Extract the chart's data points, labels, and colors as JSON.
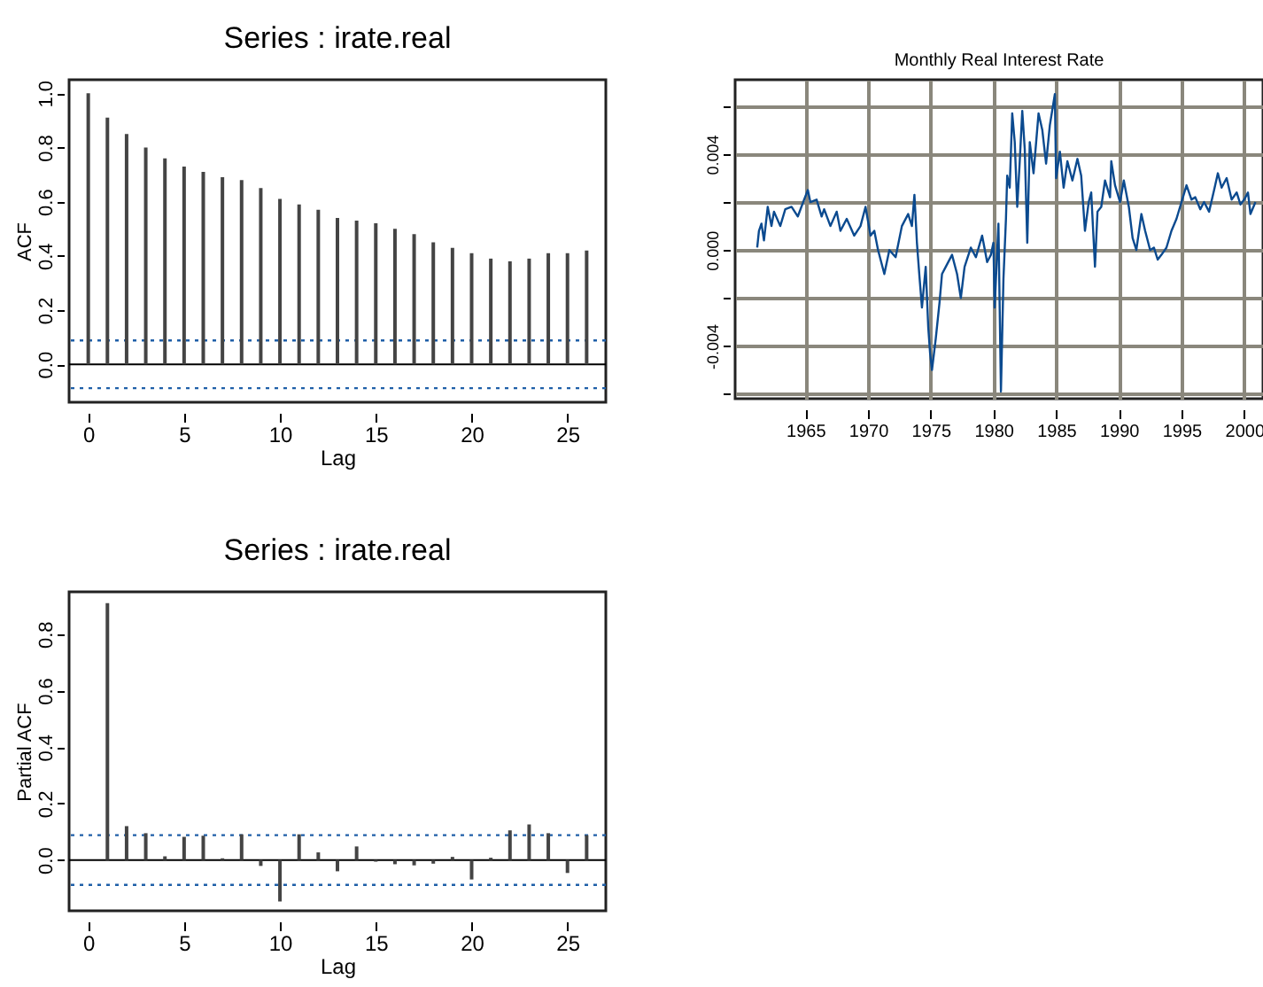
{
  "chart_data": [
    {
      "type": "bar",
      "title": "Series : irate.real",
      "xlabel": "Lag",
      "ylabel": "ACF",
      "x": [
        0,
        1,
        2,
        3,
        4,
        5,
        6,
        7,
        8,
        9,
        10,
        11,
        12,
        13,
        14,
        15,
        16,
        17,
        18,
        19,
        20,
        21,
        22,
        23,
        24,
        25,
        26
      ],
      "series": [
        {
          "color": "#444444",
          "values": [
            1.0,
            0.91,
            0.85,
            0.8,
            0.76,
            0.73,
            0.71,
            0.69,
            0.68,
            0.65,
            0.61,
            0.59,
            0.57,
            0.54,
            0.53,
            0.52,
            0.5,
            0.48,
            0.45,
            0.43,
            0.41,
            0.39,
            0.38,
            0.39,
            0.41,
            0.41,
            0.42
          ]
        }
      ],
      "xlim": [
        -1,
        27
      ],
      "xticks": [
        0,
        5,
        10,
        15,
        20,
        25
      ],
      "ylim": [
        -0.14,
        1.05
      ],
      "yticks": [
        {
          "value": 0,
          "label": "0.0"
        },
        {
          "value": 0.2,
          "label": "0.2"
        },
        {
          "value": 0.4,
          "label": "0.4"
        },
        {
          "value": 0.6,
          "label": "0.6"
        },
        {
          "value": 0.8,
          "label": "0.8"
        },
        {
          "value": 1,
          "label": "1.0"
        }
      ],
      "ref_lines": [
        {
          "axis": "y",
          "value": 0,
          "color": "#000000",
          "line_style": "solid"
        },
        {
          "axis": "y",
          "value": 0.088,
          "color": "#1f5fa8",
          "line_style": "dotted"
        },
        {
          "axis": "y",
          "value": -0.088,
          "color": "#1f5fa8",
          "line_style": "dotted"
        }
      ]
    },
    {
      "type": "line",
      "title": "Monthly Real Interest Rate",
      "series": [
        {
          "color": "#0b4a8f",
          "x": [
            1961.16,
            1961.3,
            1961.5,
            1961.7,
            1962.0,
            1962.3,
            1962.5,
            1963.0,
            1963.4,
            1963.9,
            1964.4,
            1964.9,
            1965.2,
            1965.4,
            1965.9,
            1966.3,
            1966.5,
            1967.0,
            1967.5,
            1967.8,
            1968.3,
            1968.9,
            1969.4,
            1969.8,
            1970.2,
            1970.5,
            1970.8,
            1971.3,
            1971.7,
            1972.2,
            1972.7,
            1973.2,
            1973.5,
            1973.7,
            1973.9,
            1974.1,
            1974.3,
            1974.6,
            1974.8,
            1974.95,
            1975.1,
            1975.4,
            1975.7,
            1975.9,
            1976.2,
            1976.7,
            1977.1,
            1977.4,
            1977.7,
            1978.2,
            1978.6,
            1979.1,
            1979.5,
            1979.8,
            1980.0,
            1980.1,
            1980.4,
            1980.6,
            1980.8,
            1981.0,
            1981.1,
            1981.3,
            1981.5,
            1981.7,
            1981.9,
            1982.1,
            1982.3,
            1982.5,
            1982.7,
            1982.9,
            1983.2,
            1983.6,
            1983.9,
            1984.2,
            1984.5,
            1984.9,
            1985.0,
            1985.3,
            1985.6,
            1985.9,
            1986.3,
            1986.7,
            1987.0,
            1987.3,
            1987.6,
            1987.8,
            1988.1,
            1988.3,
            1988.6,
            1988.9,
            1989.3,
            1989.4,
            1989.7,
            1990.1,
            1990.4,
            1990.8,
            1991.1,
            1991.4,
            1991.8,
            1992.1,
            1992.5,
            1992.8,
            1993.1,
            1993.4,
            1993.8,
            1994.2,
            1994.6,
            1995.0,
            1995.4,
            1995.8,
            1996.1,
            1996.5,
            1996.8,
            1997.2,
            1997.6,
            1997.9,
            1998.2,
            1998.6,
            1999.0,
            1999.4,
            1999.7,
            2000.0,
            2000.3,
            2000.5,
            2000.9
          ],
          "values": [
            0.0001,
            0.0008,
            0.0011,
            0.0004,
            0.0018,
            0.001,
            0.0016,
            0.001,
            0.0017,
            0.0018,
            0.0014,
            0.0021,
            0.0025,
            0.002,
            0.0021,
            0.0014,
            0.0017,
            0.001,
            0.0016,
            0.0008,
            0.0013,
            0.0006,
            0.001,
            0.0018,
            0.0006,
            0.0008,
            0.0,
            -0.001,
            0.0,
            -0.0003,
            0.001,
            0.0015,
            0.001,
            0.0023,
            0.0003,
            -0.0011,
            -0.0024,
            -0.0007,
            -0.0032,
            -0.0043,
            -0.005,
            -0.0037,
            -0.0022,
            -0.001,
            -0.0007,
            -0.0002,
            -0.001,
            -0.002,
            -0.0007,
            0.0001,
            -0.0003,
            0.0006,
            -0.0005,
            -0.0002,
            0.0003,
            -0.0024,
            0.0011,
            -0.0059,
            -0.0012,
            0.0013,
            0.0031,
            0.0026,
            0.0057,
            0.0045,
            0.0018,
            0.0037,
            0.0058,
            0.0042,
            0.0003,
            0.0045,
            0.0032,
            0.0057,
            0.005,
            0.0036,
            0.0052,
            0.0065,
            0.003,
            0.0041,
            0.0026,
            0.0037,
            0.0029,
            0.0038,
            0.0031,
            0.0008,
            0.002,
            0.0024,
            -0.0007,
            0.0016,
            0.0018,
            0.0029,
            0.0022,
            0.0037,
            0.0027,
            0.002,
            0.0029,
            0.0018,
            0.0005,
            0.0,
            0.0015,
            0.0008,
            0.0,
            0.0001,
            -0.0004,
            -0.0002,
            0.0001,
            0.0008,
            0.0013,
            0.002,
            0.0027,
            0.0021,
            0.0022,
            0.0017,
            0.002,
            0.0016,
            0.0025,
            0.0032,
            0.0026,
            0.003,
            0.0021,
            0.0024,
            0.0019,
            0.0021,
            0.0024,
            0.0015,
            0.002
          ]
        }
      ],
      "xlim": [
        1959.4,
        2001.5
      ],
      "xticks": [
        1965,
        1970,
        1975,
        1980,
        1985,
        1990,
        1995,
        2000
      ],
      "ylim": [
        -0.0062,
        0.0071
      ],
      "yticks": [
        {
          "value": -0.006,
          "label": null
        },
        {
          "value": -0.004,
          "label": "-0.004"
        },
        {
          "value": -0.002,
          "label": null
        },
        {
          "value": 0,
          "label": "0.000"
        },
        {
          "value": 0.002,
          "label": null
        },
        {
          "value": 0.004,
          "label": "0.004"
        },
        {
          "value": 0.006,
          "label": null
        }
      ],
      "grid": true,
      "line_style": "solid"
    },
    {
      "type": "bar",
      "title": "Series : irate.real",
      "xlabel": "Lag",
      "ylabel": "Partial ACF",
      "x": [
        1,
        2,
        3,
        4,
        5,
        6,
        7,
        8,
        9,
        10,
        11,
        12,
        13,
        14,
        15,
        16,
        17,
        18,
        19,
        20,
        21,
        22,
        23,
        24,
        25,
        26
      ],
      "series": [
        {
          "color": "#444444",
          "values": [
            0.91,
            0.12,
            0.095,
            0.013,
            0.082,
            0.086,
            0.006,
            0.091,
            -0.021,
            -0.147,
            0.091,
            0.027,
            -0.04,
            0.048,
            -0.006,
            -0.015,
            -0.019,
            -0.013,
            0.011,
            -0.069,
            0.008,
            0.105,
            0.126,
            0.095,
            -0.046,
            0.088
          ]
        }
      ],
      "xlim": [
        -1,
        27
      ],
      "xticks": [
        0,
        5,
        10,
        15,
        20,
        25
      ],
      "ylim": [
        -0.18,
        0.95
      ],
      "yticks": [
        {
          "value": 0,
          "label": "0.0"
        },
        {
          "value": 0.2,
          "label": "0.2"
        },
        {
          "value": 0.4,
          "label": "0.4"
        },
        {
          "value": 0.6,
          "label": "0.6"
        },
        {
          "value": 0.8,
          "label": "0.8"
        }
      ],
      "ref_lines": [
        {
          "axis": "y",
          "value": 0,
          "color": "#000000",
          "line_style": "solid"
        },
        {
          "axis": "y",
          "value": 0.088,
          "color": "#1f5fa8",
          "line_style": "dotted"
        },
        {
          "axis": "y",
          "value": -0.088,
          "color": "#1f5fa8",
          "line_style": "dotted"
        }
      ]
    }
  ]
}
